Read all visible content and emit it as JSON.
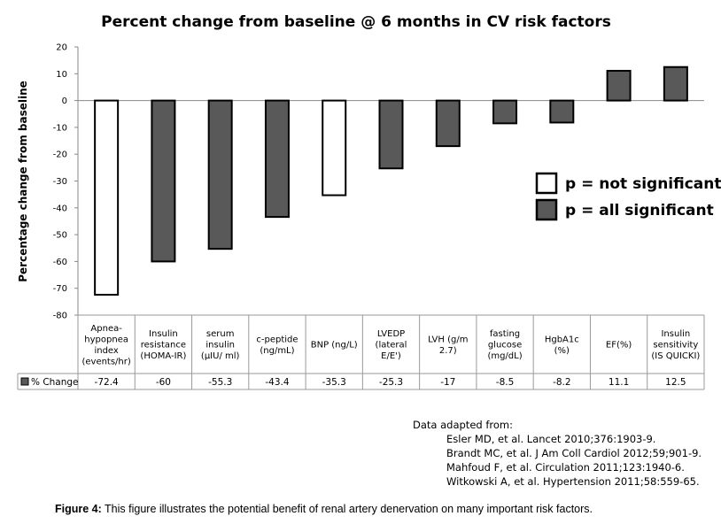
{
  "chart_data": {
    "type": "bar",
    "title": "Percent change from baseline @ 6 months in CV risk factors",
    "ylabel": "Percentage change from baseline",
    "ylim": [
      -80,
      20
    ],
    "yticks": [
      20,
      10,
      0,
      -10,
      -20,
      -30,
      -40,
      -50,
      -60,
      -70,
      -80
    ],
    "categories": [
      "Apnea-hypopnea index (events/hr)",
      "Insulin resistance (HOMA-IR)",
      "serum insulin (µIU/ ml)",
      "c-peptide (ng/mL)",
      "BNP (ng/L)",
      "LVEDP (lateral E/E')",
      "LVH (g/m 2.7)",
      "fasting glucose (mg/dL)",
      "HgbA1c (%)",
      "EF(%)",
      "Insulin sensitivity (IS QUICKI)"
    ],
    "category_lines": [
      [
        "Apnea-",
        "hypopnea",
        "index",
        "(events/hr)"
      ],
      [
        "Insulin",
        "resistance",
        "(HOMA-IR)"
      ],
      [
        "serum",
        "insulin",
        "(µIU/ ml)"
      ],
      [
        "c-peptide",
        "(ng/mL)"
      ],
      [
        "BNP (ng/L)"
      ],
      [
        "LVEDP",
        "(lateral",
        "E/E')"
      ],
      [
        "LVH (g/m",
        "2.7)"
      ],
      [
        "fasting",
        "glucose",
        "(mg/dL)"
      ],
      [
        "HgbA1c",
        "(%)"
      ],
      [
        "EF(%)"
      ],
      [
        "Insulin",
        "sensitivity",
        "(IS QUICKI)"
      ]
    ],
    "series": [
      {
        "name": "% Change",
        "values": [
          -72.4,
          -60,
          -55.3,
          -43.4,
          -35.3,
          -25.3,
          -17,
          -8.5,
          -8.2,
          11.1,
          12.5
        ],
        "value_labels": [
          "-72.4",
          "-60",
          "-55.3",
          "-43.4",
          "-35.3",
          "-25.3",
          "-17",
          "-8.5",
          "-8.2",
          "11.1",
          "12.5"
        ],
        "significant": [
          false,
          true,
          true,
          true,
          false,
          true,
          true,
          true,
          true,
          true,
          true
        ]
      }
    ],
    "legend": {
      "position": "right",
      "entries": [
        {
          "label": "p = not significant",
          "color": "#ffffff"
        },
        {
          "label": "p = all significant",
          "color": "#595959"
        }
      ]
    },
    "colors": {
      "significant": "#595959",
      "not_significant": "#ffffff",
      "outline": "#000000"
    },
    "grid": false,
    "data_table": true
  },
  "references": {
    "heading": "Data adapted from:",
    "items": [
      "Esler MD, et al. Lancet 2010;376:1903-9.",
      "Brandt MC, et al. J Am Coll Cardiol 2012;59;901-9.",
      "Mahfoud F, et al. Circulation 2011;123:1940-6.",
      "Witkowski A, et al. Hypertension 2011;58:559-65."
    ]
  },
  "caption": {
    "label": "Figure 4:",
    "text": " This figure illustrates the potential benefit of renal artery denervation on many important risk factors."
  }
}
